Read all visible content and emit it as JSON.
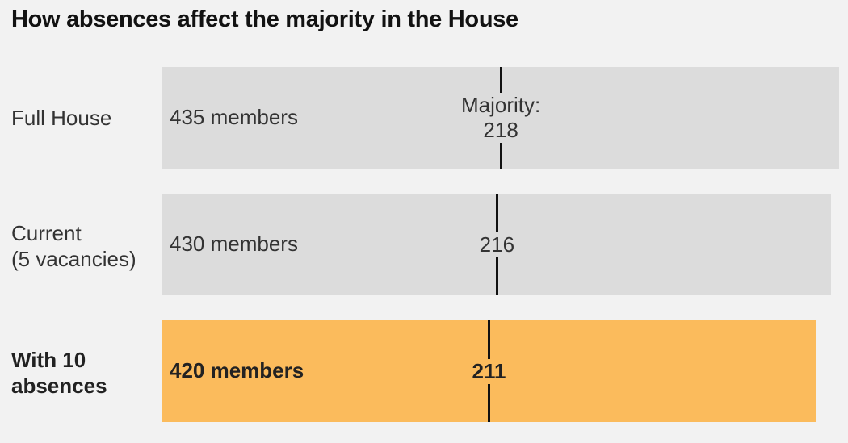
{
  "chart_data": {
    "type": "bar",
    "title": "How absences affect the majority in the House",
    "colors": {
      "gray": "#dcdcdc",
      "highlight": "#fbbb5c"
    },
    "rows": [
      {
        "label": [
          "Full House"
        ],
        "bar_label": "435 members",
        "members": 435,
        "majority": 218,
        "majority_prefix": "Majority:",
        "highlight": false
      },
      {
        "label": [
          "Current",
          "(5 vacancies)"
        ],
        "bar_label": "430 members",
        "members": 430,
        "majority": 216,
        "majority_prefix": "",
        "highlight": false
      },
      {
        "label": [
          "With 10",
          "absences"
        ],
        "bar_label": "420 members",
        "members": 420,
        "majority": 211,
        "majority_prefix": "",
        "highlight": true
      }
    ]
  }
}
